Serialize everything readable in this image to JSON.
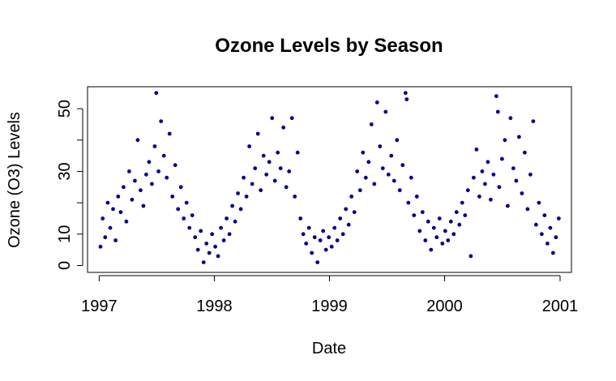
{
  "chart_data": {
    "type": "scatter",
    "title": "Ozone Levels by Season",
    "xlabel": "Date",
    "ylabel": "Ozone (O3) Levels",
    "x_ticks": [
      "1997",
      "1998",
      "1999",
      "2000",
      "2001"
    ],
    "y_ticks": [
      "0",
      "10",
      "30",
      "50"
    ],
    "xlim": [
      "1996-11-25",
      "2001-02-06"
    ],
    "ylim": [
      -2.2,
      57
    ],
    "grid": false,
    "legend": "none",
    "point_color": "#00008B",
    "series": [
      {
        "description_of_pattern": "annual cycle peaking mid-year",
        "points": [
          [
            "1997-01-05",
            6
          ],
          [
            "1997-01-12",
            15
          ],
          [
            "1997-01-20",
            9
          ],
          [
            "1997-01-28",
            20
          ],
          [
            "1997-02-05",
            12
          ],
          [
            "1997-02-14",
            18
          ],
          [
            "1997-02-22",
            8
          ],
          [
            "1997-03-02",
            22
          ],
          [
            "1997-03-10",
            17
          ],
          [
            "1997-03-19",
            25
          ],
          [
            "1997-03-28",
            14
          ],
          [
            "1997-04-06",
            30
          ],
          [
            "1997-04-15",
            21
          ],
          [
            "1997-04-24",
            27
          ],
          [
            "1997-05-03",
            40
          ],
          [
            "1997-05-12",
            24
          ],
          [
            "1997-05-21",
            19
          ],
          [
            "1997-05-30",
            29
          ],
          [
            "1997-06-08",
            33
          ],
          [
            "1997-06-17",
            26
          ],
          [
            "1997-06-26",
            38
          ],
          [
            "1997-07-01",
            55
          ],
          [
            "1997-07-08",
            30
          ],
          [
            "1997-07-16",
            46
          ],
          [
            "1997-07-25",
            35
          ],
          [
            "1997-08-03",
            28
          ],
          [
            "1997-08-12",
            42
          ],
          [
            "1997-08-21",
            22
          ],
          [
            "1997-08-30",
            32
          ],
          [
            "1997-09-08",
            18
          ],
          [
            "1997-09-17",
            25
          ],
          [
            "1997-09-26",
            15
          ],
          [
            "1997-10-05",
            20
          ],
          [
            "1997-10-14",
            12
          ],
          [
            "1997-10-23",
            16
          ],
          [
            "1997-11-01",
            9
          ],
          [
            "1997-11-10",
            5
          ],
          [
            "1997-11-19",
            11
          ],
          [
            "1997-11-28",
            1
          ],
          [
            "1997-12-07",
            7
          ],
          [
            "1997-12-16",
            4
          ],
          [
            "1997-12-25",
            10
          ],
          [
            "1998-01-04",
            6
          ],
          [
            "1998-01-13",
            3
          ],
          [
            "1998-01-22",
            12
          ],
          [
            "1998-01-31",
            8
          ],
          [
            "1998-02-09",
            15
          ],
          [
            "1998-02-18",
            10
          ],
          [
            "1998-02-27",
            19
          ],
          [
            "1998-03-08",
            14
          ],
          [
            "1998-03-17",
            23
          ],
          [
            "1998-03-26",
            18
          ],
          [
            "1998-04-04",
            28
          ],
          [
            "1998-04-13",
            22
          ],
          [
            "1998-04-22",
            38
          ],
          [
            "1998-05-01",
            26
          ],
          [
            "1998-05-10",
            31
          ],
          [
            "1998-05-19",
            42
          ],
          [
            "1998-05-28",
            24
          ],
          [
            "1998-06-06",
            35
          ],
          [
            "1998-06-15",
            29
          ],
          [
            "1998-06-24",
            33
          ],
          [
            "1998-07-03",
            47
          ],
          [
            "1998-07-12",
            27
          ],
          [
            "1998-07-21",
            36
          ],
          [
            "1998-07-30",
            31
          ],
          [
            "1998-08-08",
            44
          ],
          [
            "1998-08-17",
            25
          ],
          [
            "1998-08-26",
            30
          ],
          [
            "1998-09-04",
            47
          ],
          [
            "1998-09-13",
            22
          ],
          [
            "1998-09-22",
            36
          ],
          [
            "1998-10-01",
            15
          ],
          [
            "1998-10-10",
            10
          ],
          [
            "1998-10-19",
            7
          ],
          [
            "1998-10-28",
            12
          ],
          [
            "1998-11-06",
            4
          ],
          [
            "1998-11-15",
            9
          ],
          [
            "1998-11-24",
            1
          ],
          [
            "1998-12-03",
            8
          ],
          [
            "1998-12-12",
            11
          ],
          [
            "1998-12-21",
            5
          ],
          [
            "1998-12-30",
            9
          ],
          [
            "1999-01-08",
            6
          ],
          [
            "1999-01-17",
            12
          ],
          [
            "1999-01-26",
            8
          ],
          [
            "1999-02-04",
            15
          ],
          [
            "1999-02-13",
            10
          ],
          [
            "1999-02-22",
            18
          ],
          [
            "1999-03-03",
            13
          ],
          [
            "1999-03-12",
            22
          ],
          [
            "1999-03-21",
            17
          ],
          [
            "1999-03-30",
            30
          ],
          [
            "1999-04-08",
            24
          ],
          [
            "1999-04-17",
            36
          ],
          [
            "1999-04-26",
            28
          ],
          [
            "1999-05-05",
            33
          ],
          [
            "1999-05-14",
            45
          ],
          [
            "1999-05-23",
            26
          ],
          [
            "1999-06-01",
            52
          ],
          [
            "1999-06-10",
            38
          ],
          [
            "1999-06-19",
            31
          ],
          [
            "1999-06-28",
            49
          ],
          [
            "1999-07-07",
            29
          ],
          [
            "1999-07-16",
            35
          ],
          [
            "1999-07-25",
            27
          ],
          [
            "1999-08-03",
            40
          ],
          [
            "1999-08-12",
            24
          ],
          [
            "1999-08-21",
            32
          ],
          [
            "1999-08-30",
            55
          ],
          [
            "1999-09-03",
            53
          ],
          [
            "1999-09-08",
            20
          ],
          [
            "1999-09-17",
            28
          ],
          [
            "1999-09-26",
            16
          ],
          [
            "1999-10-05",
            22
          ],
          [
            "1999-10-14",
            11
          ],
          [
            "1999-10-23",
            17
          ],
          [
            "1999-11-01",
            8
          ],
          [
            "1999-11-10",
            14
          ],
          [
            "1999-11-19",
            5
          ],
          [
            "1999-11-28",
            12
          ],
          [
            "1999-12-07",
            9
          ],
          [
            "1999-12-16",
            15
          ],
          [
            "1999-12-25",
            7
          ],
          [
            "2000-01-03",
            11
          ],
          [
            "2000-01-12",
            8
          ],
          [
            "2000-01-21",
            14
          ],
          [
            "2000-01-30",
            10
          ],
          [
            "2000-02-08",
            17
          ],
          [
            "2000-02-17",
            13
          ],
          [
            "2000-02-26",
            20
          ],
          [
            "2000-03-06",
            16
          ],
          [
            "2000-03-15",
            24
          ],
          [
            "2000-03-24",
            3
          ],
          [
            "2000-04-02",
            28
          ],
          [
            "2000-04-11",
            37
          ],
          [
            "2000-04-20",
            22
          ],
          [
            "2000-04-29",
            30
          ],
          [
            "2000-05-08",
            26
          ],
          [
            "2000-05-17",
            33
          ],
          [
            "2000-05-26",
            21
          ],
          [
            "2000-06-04",
            29
          ],
          [
            "2000-06-13",
            54
          ],
          [
            "2000-06-18",
            49
          ],
          [
            "2000-06-22",
            25
          ],
          [
            "2000-07-01",
            34
          ],
          [
            "2000-07-10",
            40
          ],
          [
            "2000-07-19",
            19
          ],
          [
            "2000-07-28",
            47
          ],
          [
            "2000-08-06",
            31
          ],
          [
            "2000-08-15",
            27
          ],
          [
            "2000-08-24",
            41
          ],
          [
            "2000-09-02",
            23
          ],
          [
            "2000-09-11",
            36
          ],
          [
            "2000-09-20",
            18
          ],
          [
            "2000-09-29",
            29
          ],
          [
            "2000-10-08",
            46
          ],
          [
            "2000-10-17",
            13
          ],
          [
            "2000-10-26",
            20
          ],
          [
            "2000-11-04",
            10
          ],
          [
            "2000-11-13",
            16
          ],
          [
            "2000-11-22",
            7
          ],
          [
            "2000-12-01",
            12
          ],
          [
            "2000-12-10",
            4
          ],
          [
            "2000-12-19",
            9
          ],
          [
            "2000-12-28",
            15
          ]
        ]
      }
    ]
  }
}
